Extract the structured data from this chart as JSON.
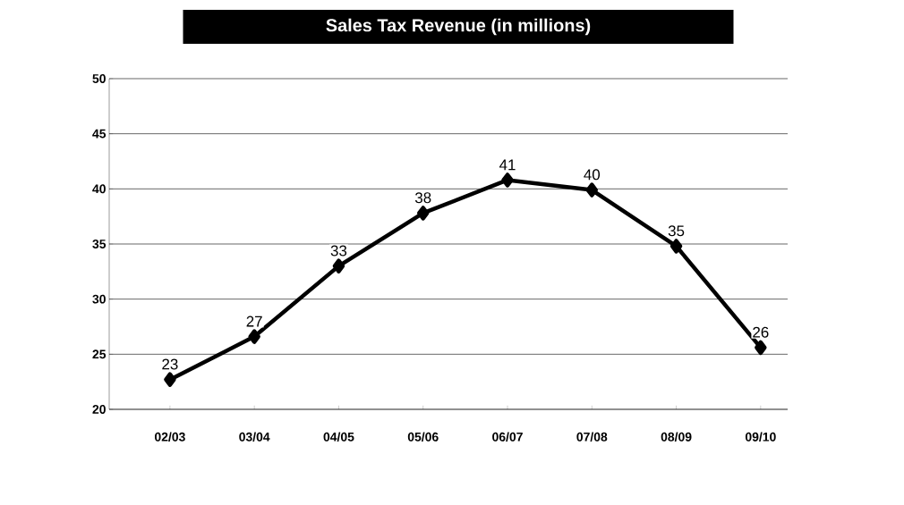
{
  "chart_data": {
    "type": "line",
    "title": "Sales Tax Revenue (in millions)",
    "categories": [
      "02/03",
      "03/04",
      "04/05",
      "05/06",
      "06/07",
      "07/08",
      "08/09",
      "09/10"
    ],
    "series": [
      {
        "color": "#000000",
        "values": [
          22.7,
          26.6,
          33.0,
          37.8,
          40.8,
          39.9,
          34.8,
          25.6
        ],
        "value_labels": [
          "23",
          "27",
          "33",
          "38",
          "41",
          "40",
          "35",
          "26"
        ]
      }
    ],
    "ylim": [
      20,
      50
    ],
    "yticks": [
      20,
      25,
      30,
      35,
      40,
      45,
      50
    ],
    "grid": "y",
    "marker": "diamond",
    "line_style": "solid"
  }
}
